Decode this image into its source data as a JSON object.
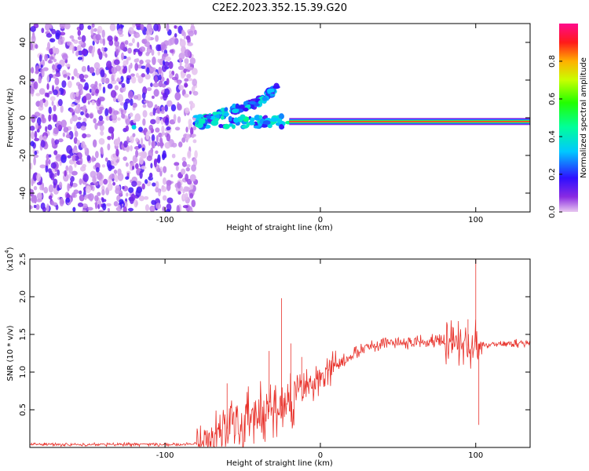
{
  "title": "C2E2.2023.352.15.39.G20",
  "chart_data": [
    {
      "type": "heatmap",
      "xlabel": "Height of straight line (km)",
      "ylabel": "Frequency (Hz)",
      "xlim": [
        -187,
        135
      ],
      "ylim": [
        -50,
        50
      ],
      "x_ticks": [
        "-100",
        "0",
        "100"
      ],
      "x_tick_values": [
        -100,
        0,
        100
      ],
      "y_ticks": [
        "40",
        "20",
        "0",
        "-20",
        "-40"
      ],
      "y_tick_values": [
        40,
        20,
        0,
        -20,
        -40
      ],
      "colorbar": {
        "label": "Normalized spectral amplitude",
        "range": [
          0,
          1
        ],
        "ticks": [
          "0.0",
          "0.2",
          "0.4",
          "0.6",
          "0.8"
        ],
        "tick_values": [
          0,
          0.2,
          0.4,
          0.6,
          0.8
        ],
        "colormap": "rainbow (purple-blue-cyan-green-yellow-red-magenta)"
      },
      "features": {
        "noise_region_x": [
          -187,
          -80
        ],
        "trace_center_hz": -2,
        "trace_from_x": -20,
        "trace_to_x": 135,
        "rising_branch": [
          [
            -80,
            -3
          ],
          [
            -60,
            3
          ],
          [
            -40,
            8
          ],
          [
            -28,
            16
          ]
        ]
      }
    },
    {
      "type": "line",
      "xlabel": "Height of straight line (km)",
      "ylabel": "SNR (10 * v/v)",
      "y_multiplier": "(x10",
      "y_multiplier_exp": "4",
      "xlim": [
        -187,
        135
      ],
      "ylim": [
        0,
        2.5
      ],
      "x_ticks": [
        "-100",
        "0",
        "100"
      ],
      "x_tick_values": [
        -100,
        0,
        100
      ],
      "y_ticks": [
        "2.5",
        "2.0",
        "1.5",
        "1.0",
        "0.5"
      ],
      "y_tick_values": [
        2.5,
        2.0,
        1.5,
        1.0,
        0.5
      ],
      "series": [
        {
          "color": "#e8312a",
          "x": [
            -187,
            -150,
            -110,
            -90,
            -80,
            -75,
            -70,
            -65,
            -60,
            -55,
            -50,
            -45,
            -40,
            -35,
            -30,
            -25,
            -20,
            -15,
            -10,
            -5,
            0,
            5,
            10,
            15,
            20,
            25,
            30,
            40,
            50,
            60,
            70,
            80,
            85,
            90,
            95,
            98,
            100,
            102,
            104,
            110,
            120,
            135
          ],
          "y": [
            0.04,
            0.04,
            0.04,
            0.04,
            0.05,
            0.08,
            0.14,
            0.2,
            0.25,
            0.3,
            0.34,
            0.38,
            0.42,
            0.45,
            0.5,
            0.55,
            0.6,
            0.7,
            0.8,
            0.85,
            0.9,
            1.0,
            1.08,
            1.15,
            1.2,
            1.28,
            1.33,
            1.38,
            1.4,
            1.4,
            1.4,
            1.4,
            1.42,
            1.38,
            1.35,
            1.3,
            1.4,
            1.38,
            1.36,
            1.37,
            1.38,
            1.38
          ],
          "spikes": [
            [
              -60,
              0.85
            ],
            [
              -33,
              1.28
            ],
            [
              -25,
              1.98
            ],
            [
              -19,
              1.38
            ],
            [
              -12,
              1.2
            ],
            [
              85,
              1.6
            ],
            [
              95,
              1.7
            ],
            [
              100,
              2.55
            ],
            [
              102,
              0.3
            ]
          ]
        }
      ]
    }
  ]
}
